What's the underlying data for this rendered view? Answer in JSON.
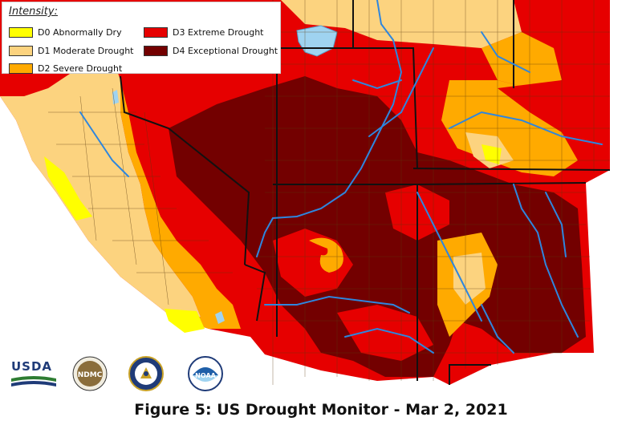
{
  "legend": {
    "title": "Intensity:",
    "items": [
      {
        "label": "D0 Abnormally Dry",
        "color": "#ffff00"
      },
      {
        "label": "D1 Moderate Drought",
        "color": "#fcd37f"
      },
      {
        "label": "D2 Severe Drought",
        "color": "#ffaa00"
      },
      {
        "label": "D3 Extreme Drought",
        "color": "#e60000"
      },
      {
        "label": "D4 Exceptional Drought",
        "color": "#730000"
      }
    ]
  },
  "colors": {
    "water": "#9fd3f0",
    "river": "#2e86de",
    "boundary": "#111111",
    "county": "#6b4a20"
  },
  "logos": [
    {
      "name": "usda-logo",
      "text": "USDA"
    },
    {
      "name": "ndmc-logo",
      "text": "NDMC"
    },
    {
      "name": "commerce-seal-logo",
      "text": ""
    },
    {
      "name": "noaa-logo",
      "text": "NOAA"
    }
  ],
  "caption": "Figure 5: US Drought Monitor - Mar 2, 2021"
}
